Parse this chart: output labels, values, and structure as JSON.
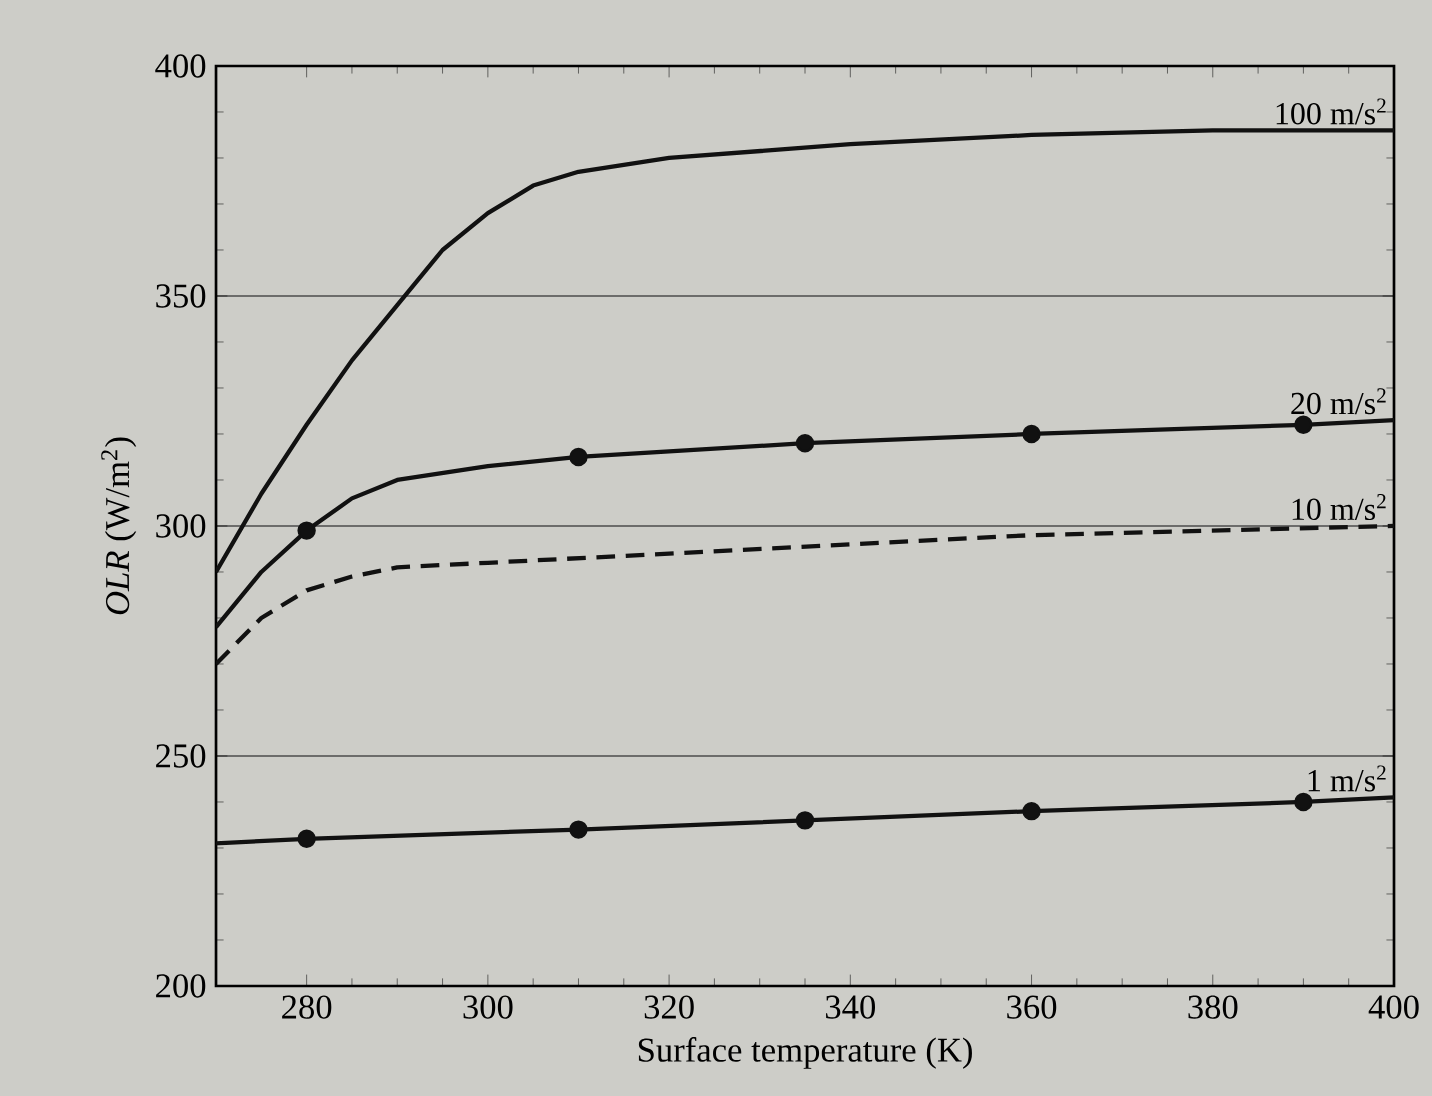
{
  "chart_data": {
    "type": "line",
    "xlabel": "Surface temperature (K)",
    "ylabel": "*OLR* (W/m$^{2}$)",
    "xlim": [
      270,
      400
    ],
    "ylim": [
      200,
      400
    ],
    "xticks": [
      280,
      300,
      320,
      340,
      360,
      380,
      400
    ],
    "yticks": [
      200,
      250,
      300,
      350,
      400
    ],
    "grid": "y",
    "series": [
      {
        "name": "100 m/s$^{2}$",
        "color": "#111111",
        "line_style": "solid",
        "marker": "none",
        "x": [
          270,
          275,
          280,
          285,
          290,
          295,
          300,
          305,
          310,
          320,
          340,
          360,
          380,
          400
        ],
        "values": [
          290,
          307,
          322,
          336,
          348,
          360,
          368,
          374,
          377,
          380,
          383,
          385,
          386,
          386
        ]
      },
      {
        "name": "20 m/s$^{2}$",
        "color": "#111111",
        "line_style": "solid",
        "marker": "none",
        "x": [
          270,
          275,
          280,
          285,
          290,
          300,
          310,
          335,
          360,
          390,
          400
        ],
        "values": [
          278,
          290,
          299,
          306,
          310,
          313,
          315,
          318,
          320,
          322,
          323
        ]
      },
      {
        "type": "scatter",
        "color": "#111111",
        "marker": "circle",
        "x": [
          280,
          310,
          335,
          360,
          390
        ],
        "values": [
          299,
          315,
          318,
          320,
          322
        ]
      },
      {
        "name": "10 m/s$^{2}$",
        "color": "#111111",
        "line_style": "dashed",
        "marker": "none",
        "x": [
          270,
          275,
          280,
          285,
          290,
          300,
          320,
          340,
          360,
          380,
          400
        ],
        "values": [
          270,
          280,
          286,
          289,
          291,
          292,
          294,
          296,
          298,
          299,
          300
        ]
      },
      {
        "name": "1 m/s$^{2}$",
        "color": "#111111",
        "line_style": "solid",
        "marker": "none",
        "x": [
          270,
          280,
          310,
          335,
          360,
          390,
          400
        ],
        "values": [
          231,
          232,
          234,
          236,
          238,
          240,
          241
        ]
      },
      {
        "type": "scatter",
        "color": "#111111",
        "marker": "circle",
        "x": [
          280,
          310,
          335,
          360,
          390
        ],
        "values": [
          232,
          234,
          236,
          238,
          240
        ]
      }
    ]
  }
}
